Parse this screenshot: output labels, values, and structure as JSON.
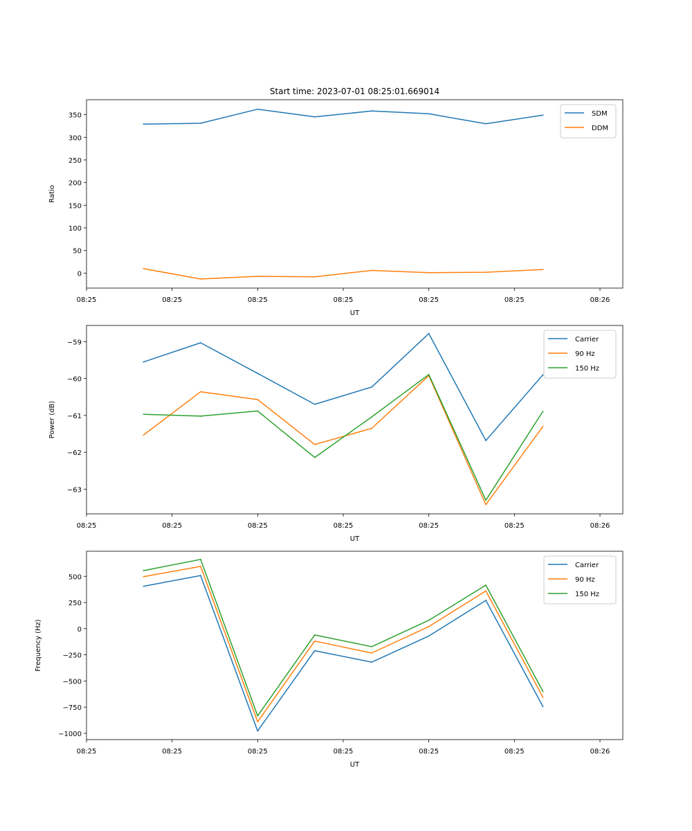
{
  "chart_data": [
    {
      "type": "line",
      "title": "Start time: 2023-07-01 08:25:01.669014",
      "xlabel": "UT",
      "ylabel": "Ratio",
      "x_tick_labels": [
        "08:25",
        "08:25",
        "08:25",
        "08:25",
        "08:25",
        "08:25",
        "08:26"
      ],
      "x": [
        0.5,
        1.0,
        1.5,
        2.0,
        2.5,
        3.0,
        3.5,
        4.0
      ],
      "xlim": [
        0.0,
        4.7
      ],
      "x_ticks": [
        0.0,
        0.75,
        1.5,
        2.25,
        3.0,
        3.75,
        4.5
      ],
      "ylim": [
        -33,
        383
      ],
      "y_ticks": [
        0,
        50,
        100,
        150,
        200,
        250,
        300,
        350
      ],
      "legend": "top-right",
      "series": [
        {
          "name": "SDM",
          "color": "#1f77b4",
          "values": [
            329,
            331,
            362,
            345,
            358,
            352,
            330,
            349
          ]
        },
        {
          "name": "DDM",
          "color": "#ff7f0e",
          "values": [
            10,
            -13,
            -7,
            -8,
            6,
            1,
            2,
            8
          ]
        }
      ]
    },
    {
      "type": "line",
      "title": "",
      "xlabel": "UT",
      "ylabel": "Power (dB)",
      "x_tick_labels": [
        "08:25",
        "08:25",
        "08:25",
        "08:25",
        "08:25",
        "08:25",
        "08:26"
      ],
      "x": [
        0.5,
        1.0,
        1.5,
        2.0,
        2.5,
        3.0,
        3.5,
        4.0
      ],
      "xlim": [
        0.0,
        4.7
      ],
      "x_ticks": [
        0.0,
        0.75,
        1.5,
        2.25,
        3.0,
        3.75,
        4.5
      ],
      "ylim": [
        -63.67,
        -58.56
      ],
      "y_ticks": [
        -63,
        -62,
        -61,
        -60,
        -59
      ],
      "legend": "top-right",
      "series": [
        {
          "name": "Carrier",
          "color": "#1f77b4",
          "values": [
            -59.55,
            -59.03,
            -59.86,
            -60.7,
            -60.23,
            -58.78,
            -61.68,
            -59.9
          ]
        },
        {
          "name": "90 Hz",
          "color": "#ff7f0e",
          "values": [
            -61.53,
            -60.36,
            -60.57,
            -61.79,
            -61.35,
            -59.92,
            -63.42,
            -61.3
          ]
        },
        {
          "name": "150 Hz",
          "color": "#2ca02c",
          "values": [
            -60.97,
            -61.02,
            -60.88,
            -62.14,
            -61.04,
            -59.89,
            -63.3,
            -60.89
          ]
        }
      ]
    },
    {
      "type": "line",
      "title": "",
      "xlabel": "UT",
      "ylabel": "Frequency (Hz)",
      "x_tick_labels": [
        "08:25",
        "08:25",
        "08:25",
        "08:25",
        "08:25",
        "08:25",
        "08:26"
      ],
      "x": [
        0.5,
        1.0,
        1.5,
        2.0,
        2.5,
        3.0,
        3.5,
        4.0
      ],
      "xlim": [
        0.0,
        4.7
      ],
      "x_ticks": [
        0.0,
        0.75,
        1.5,
        2.25,
        3.0,
        3.75,
        4.5
      ],
      "ylim": [
        -1060,
        740
      ],
      "y_ticks": [
        -1000,
        -750,
        -500,
        -250,
        0,
        250,
        500
      ],
      "legend": "top-right",
      "series": [
        {
          "name": "Carrier",
          "color": "#1f77b4",
          "values": [
            405,
            508,
            -978,
            -210,
            -320,
            -70,
            270,
            -745
          ]
        },
        {
          "name": "90 Hz",
          "color": "#ff7f0e",
          "values": [
            497,
            595,
            -890,
            -118,
            -233,
            20,
            360,
            -655
          ]
        },
        {
          "name": "150 Hz",
          "color": "#2ca02c",
          "values": [
            555,
            662,
            -833,
            -60,
            -172,
            80,
            416,
            -600
          ]
        }
      ]
    }
  ]
}
